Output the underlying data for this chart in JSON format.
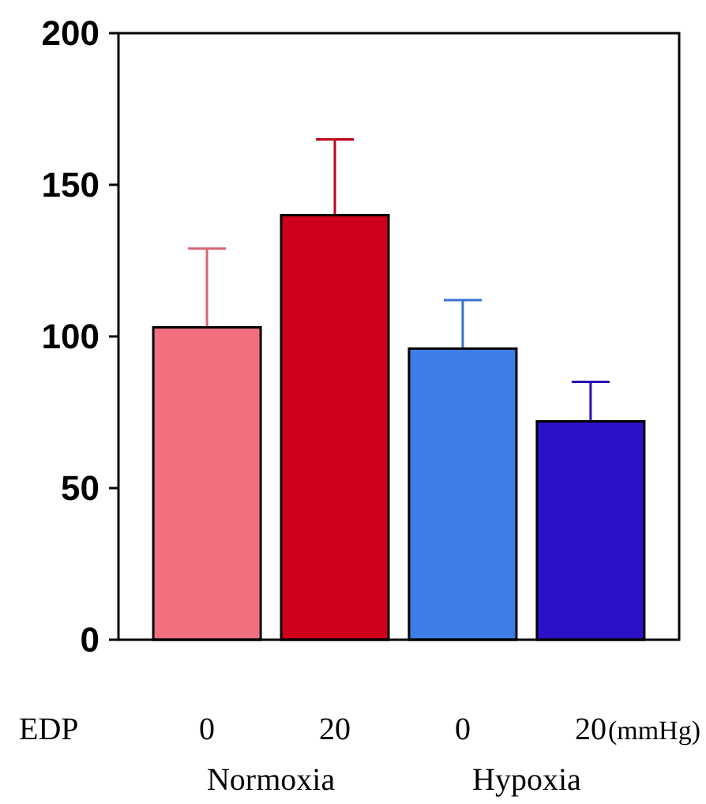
{
  "chart_data": {
    "type": "bar",
    "categories": [
      "0",
      "20",
      "0",
      "20"
    ],
    "values": [
      103,
      140,
      96,
      72
    ],
    "colors": [
      "#f07080",
      "#d0001c",
      "#3c7ee6",
      "#2a12c8"
    ],
    "errors": [
      [
        103,
        129
      ],
      [
        140,
        165
      ],
      [
        96,
        112
      ],
      [
        72,
        85
      ]
    ],
    "ylim": [
      0,
      200
    ],
    "yticks": [
      0,
      50,
      100,
      150,
      200
    ],
    "grid": false,
    "annotations": [
      "EDP",
      "(mmHg)",
      "Normoxia",
      "Hypoxia"
    ]
  }
}
